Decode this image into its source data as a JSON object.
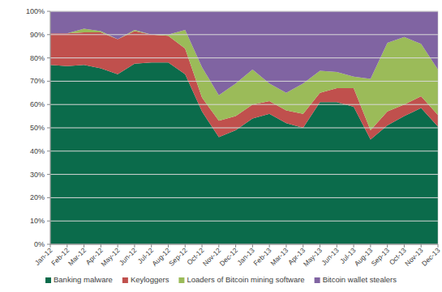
{
  "chart_data": {
    "type": "area",
    "stacked": true,
    "grid": true,
    "legend": "bottom",
    "categories": [
      "Jan-12",
      "Feb-12",
      "Mar-12",
      "Apr-12",
      "May-12",
      "Jun-12",
      "Jul-12",
      "Aug-12",
      "Sep-12",
      "Oct-12",
      "Nov-12",
      "Dec-12",
      "Jan-13",
      "Feb-13",
      "Mar-13",
      "Apr-13",
      "May-13",
      "Jun-13",
      "Jul-13",
      "Aug-13",
      "Sep-13",
      "Oct-13",
      "Nov-13",
      "Dec-13"
    ],
    "series": [
      {
        "name": "Banking malware",
        "color": "#0b6b4b",
        "values": [
          77,
          76.5,
          77,
          75.5,
          73,
          77.5,
          78,
          78,
          73,
          57,
          46,
          49,
          54,
          56,
          52,
          50,
          61,
          61,
          59,
          45,
          51,
          55,
          58.5,
          50.5
        ]
      },
      {
        "name": "Keyloggers",
        "color": "#c0504d",
        "values": [
          13.5,
          14,
          14,
          15.5,
          15,
          14,
          12,
          11.5,
          11,
          6,
          7,
          6,
          6,
          5.5,
          5.5,
          6,
          4,
          6,
          8,
          4,
          6,
          5,
          5,
          5
        ]
      },
      {
        "name": "Loaders of Bitcoin mining software",
        "color": "#9bbb59",
        "values": [
          0,
          0,
          1.5,
          0.5,
          0,
          0.5,
          0,
          0.5,
          8,
          13,
          11,
          14,
          15,
          7.5,
          7.5,
          13,
          9.5,
          7,
          5,
          22,
          29.5,
          29,
          22.5,
          19.5
        ]
      },
      {
        "name": "Bitcoin wallet stealers",
        "color": "#8064a2",
        "values": [
          9.5,
          9.5,
          7.5,
          8.5,
          12,
          8,
          10,
          10,
          8,
          24,
          36,
          31,
          25,
          31,
          35,
          31,
          25.5,
          26,
          28,
          29,
          13.5,
          11,
          14,
          25
        ]
      }
    ],
    "ylim": [
      0,
      100
    ],
    "yticks": [
      {
        "value": 0,
        "label": "0%"
      },
      {
        "value": 10,
        "label": "10%"
      },
      {
        "value": 20,
        "label": "20%"
      },
      {
        "value": 30,
        "label": "30%"
      },
      {
        "value": 40,
        "label": "40%"
      },
      {
        "value": 50,
        "label": "50%"
      },
      {
        "value": 60,
        "label": "60%"
      },
      {
        "value": 70,
        "label": "70%"
      },
      {
        "value": 80,
        "label": "80%"
      },
      {
        "value": 90,
        "label": "90%"
      },
      {
        "value": 100,
        "label": "100%"
      }
    ]
  }
}
